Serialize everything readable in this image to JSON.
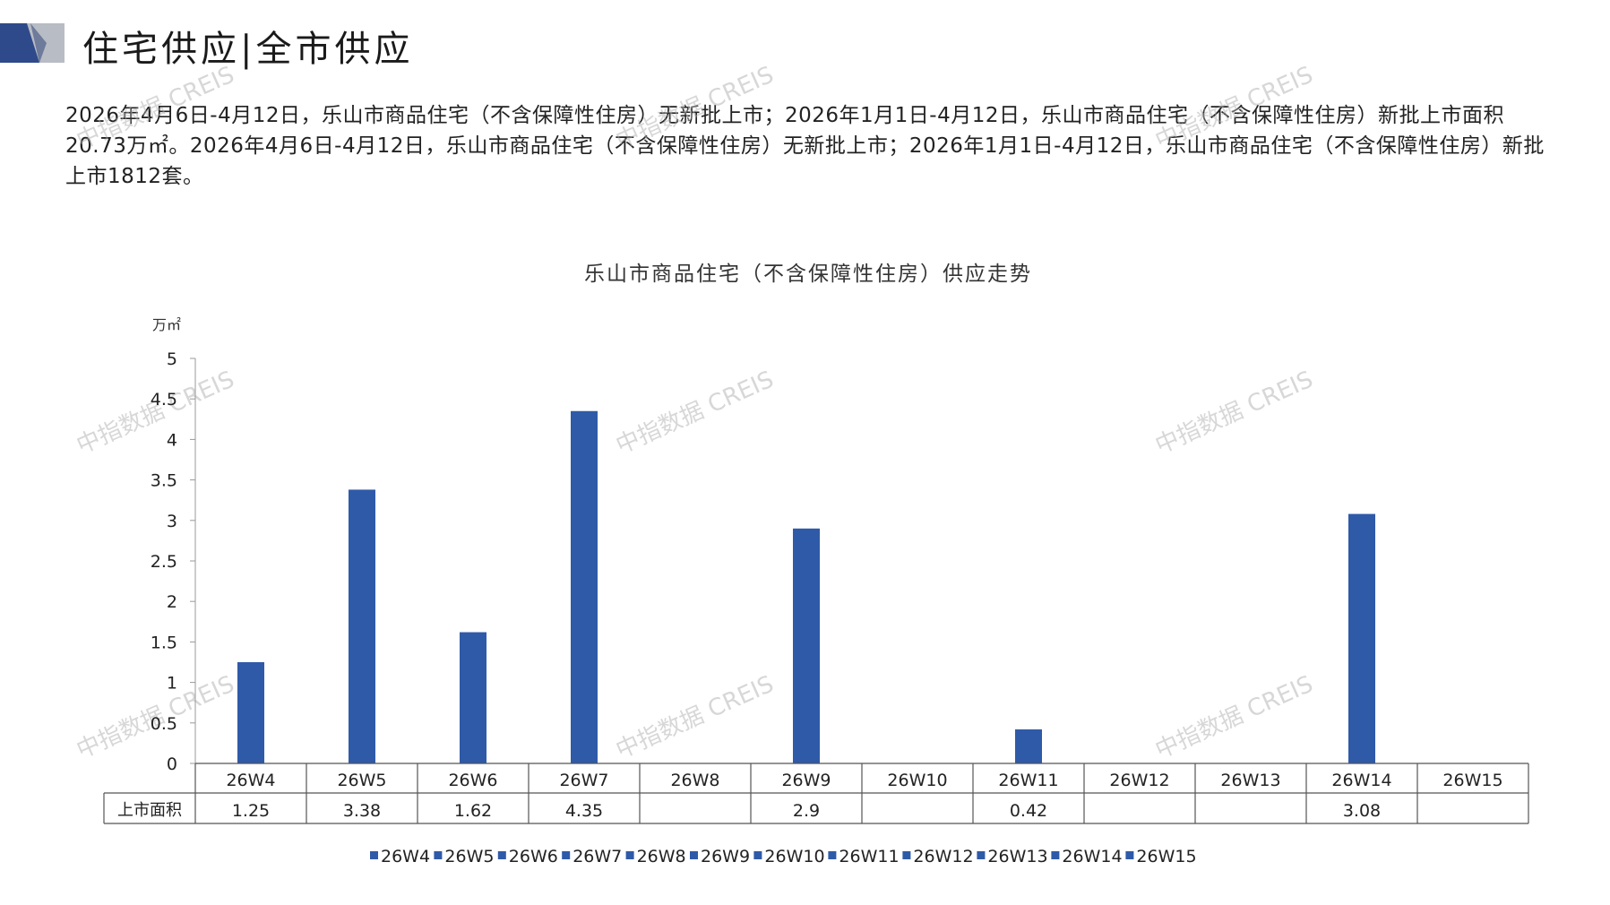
{
  "header": {
    "title": "住宅供应|全市供应"
  },
  "summary": {
    "text": "2026年4月6日-4月12日，乐山市商品住宅（不含保障性住房）无新批上市；2026年1月1日-4月12日，乐山市商品住宅（不含保障性住房）新批上市面积20.73万㎡。2026年4月6日-4月12日，乐山市商品住宅（不含保障性住房）无新批上市；2026年1月1日-4月12日，乐山市商品住宅（不含保障性住房）新批上市1812套。"
  },
  "watermark": {
    "text": "中指数据 CREIS"
  },
  "colors": {
    "bar": "#2F5AA8",
    "logo_dark": "#2F4A8A",
    "logo_light": "#B8BCC4"
  },
  "chart_data": {
    "type": "bar",
    "title": "乐山市商品住宅（不含保障性住房）供应走势",
    "ylabel": "万㎡",
    "ylim": [
      0,
      5
    ],
    "yticks": [
      "0",
      "0.5",
      "1",
      "1.5",
      "2",
      "2.5",
      "3",
      "3.5",
      "4",
      "4.5",
      "5"
    ],
    "categories": [
      "26W4",
      "26W5",
      "26W6",
      "26W7",
      "26W8",
      "26W9",
      "26W10",
      "26W11",
      "26W12",
      "26W13",
      "26W14",
      "26W15"
    ],
    "series": [
      {
        "name": "上市面积",
        "values": [
          1.25,
          3.38,
          1.62,
          4.35,
          null,
          2.9,
          null,
          0.42,
          null,
          null,
          3.08,
          null
        ],
        "labels": [
          "1.25",
          "3.38",
          "1.62",
          "4.35",
          "",
          "2.9",
          "",
          "0.42",
          "",
          "",
          "3.08",
          ""
        ]
      }
    ],
    "legend": [
      "26W4",
      "26W5",
      "26W6",
      "26W7",
      "26W8",
      "26W9",
      "26W10",
      "26W11",
      "26W12",
      "26W13",
      "26W14",
      "26W15"
    ],
    "legend_position": "bottom",
    "grid": false,
    "data_table": true
  }
}
